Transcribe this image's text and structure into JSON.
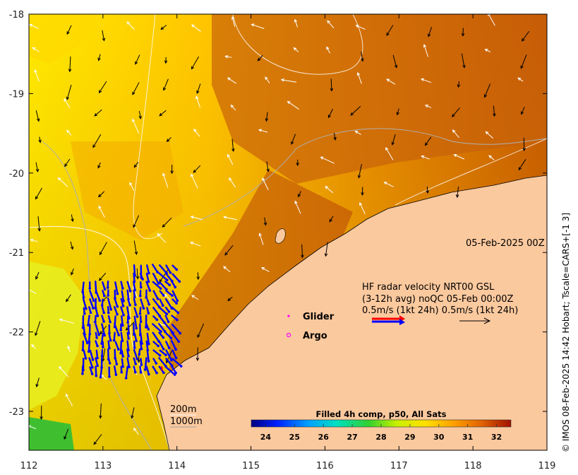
{
  "map": {
    "date_stamp": "05-Feb-2025 00Z",
    "side_note": "© IMOS 08-Feb-2025 14:42 Hobart; Tscale=CARS+[-1 3]",
    "x_axis_ticks": [
      "112",
      "113",
      "114",
      "115",
      "116",
      "117",
      "118",
      "119"
    ],
    "y_axis_ticks": [
      "-18",
      "-19",
      "-20",
      "-21",
      "-22",
      "-23"
    ]
  },
  "legend": {
    "glider_label": "Glider",
    "argo_label": "Argo",
    "hf_line1": "HF radar velocity  NRT00 GSL",
    "hf_line2": "(3-12h avg) noQC 05-Feb 00:00Z",
    "hf_line3": "0.5m/s (1kt 24h)  0.5m/s (1kt 24h)",
    "depth_200": "200m",
    "depth_1000": "1000m"
  },
  "colorbar": {
    "title": "Filled 4h comp, p50, All Sats",
    "ticks": [
      "24",
      "25",
      "26",
      "27",
      "28",
      "29",
      "30",
      "31",
      "32"
    ],
    "range": [
      23.5,
      32.5
    ]
  },
  "colors": {
    "land": "#fbc99e",
    "glider": "#ff00ff",
    "argo": "#ff00ff",
    "hf_red": "#ff0000",
    "hf_blue": "#0000ff"
  }
}
